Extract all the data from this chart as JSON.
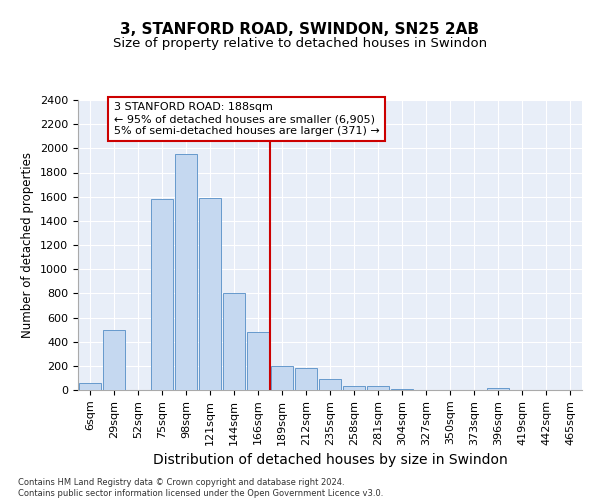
{
  "title": "3, STANFORD ROAD, SWINDON, SN25 2AB",
  "subtitle": "Size of property relative to detached houses in Swindon",
  "xlabel": "Distribution of detached houses by size in Swindon",
  "ylabel": "Number of detached properties",
  "categories": [
    "6sqm",
    "29sqm",
    "52sqm",
    "75sqm",
    "98sqm",
    "121sqm",
    "144sqm",
    "166sqm",
    "189sqm",
    "212sqm",
    "235sqm",
    "258sqm",
    "281sqm",
    "304sqm",
    "327sqm",
    "350sqm",
    "373sqm",
    "396sqm",
    "419sqm",
    "442sqm",
    "465sqm"
  ],
  "values": [
    60,
    500,
    0,
    1580,
    1950,
    1590,
    800,
    480,
    195,
    185,
    95,
    35,
    30,
    5,
    0,
    0,
    0,
    20,
    0,
    0,
    0
  ],
  "bar_color": "#c5d8f0",
  "bar_edgecolor": "#6699cc",
  "vline_color": "#cc0000",
  "annotation_text": "3 STANFORD ROAD: 188sqm\n← 95% of detached houses are smaller (6,905)\n5% of semi-detached houses are larger (371) →",
  "annotation_box_edgecolor": "#cc0000",
  "footer_line1": "Contains HM Land Registry data © Crown copyright and database right 2024.",
  "footer_line2": "Contains public sector information licensed under the Open Government Licence v3.0.",
  "ylim": [
    0,
    2400
  ],
  "yticks": [
    0,
    200,
    400,
    600,
    800,
    1000,
    1200,
    1400,
    1600,
    1800,
    2000,
    2200,
    2400
  ],
  "background_color": "#e8eef8",
  "grid_color": "#ffffff",
  "title_fontsize": 11,
  "subtitle_fontsize": 9.5,
  "xlabel_fontsize": 10,
  "ylabel_fontsize": 8.5,
  "tick_fontsize": 8,
  "annotation_fontsize": 8,
  "footer_fontsize": 6
}
